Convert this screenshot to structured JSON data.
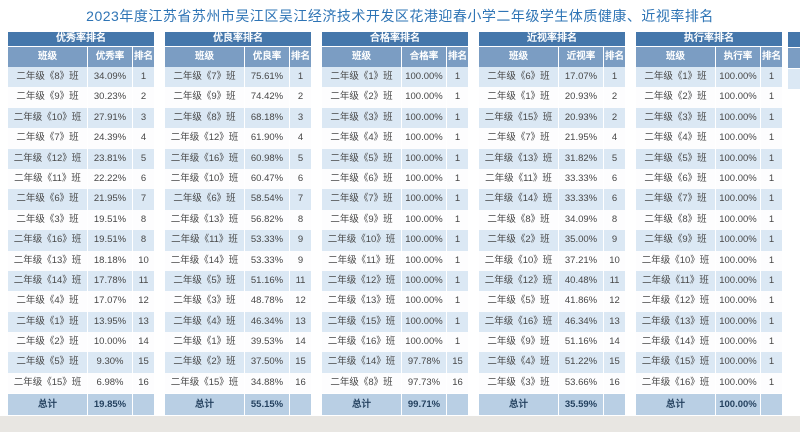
{
  "title": "2023年度江苏省苏州市吴江区吴江经济技术开发区花港迎春小学二年级学生体质健康、近视率排名",
  "column_headers": {
    "class": "班级",
    "rank": "排名"
  },
  "total_label": "总计",
  "colors": {
    "table_header_bg": "#4577ab",
    "table_subheader_bg": "#7b9dc3",
    "row_stripe_bg": "#dbe8f4",
    "total_row_bg": "#b9cfe4",
    "title_text": "#2e74b5",
    "bottom_strip_bg": "#e8e6e2"
  },
  "tables": [
    {
      "title": "优秀率排名",
      "rate_header": "优秀率",
      "total": "19.85%",
      "rows": [
        [
          "二年级《8》班",
          "34.09%",
          "1"
        ],
        [
          "二年级《9》班",
          "30.23%",
          "2"
        ],
        [
          "二年级《10》班",
          "27.91%",
          "3"
        ],
        [
          "二年级《7》班",
          "24.39%",
          "4"
        ],
        [
          "二年级《12》班",
          "23.81%",
          "5"
        ],
        [
          "二年级《11》班",
          "22.22%",
          "6"
        ],
        [
          "二年级《6》班",
          "21.95%",
          "7"
        ],
        [
          "二年级《3》班",
          "19.51%",
          "8"
        ],
        [
          "二年级《16》班",
          "19.51%",
          "8"
        ],
        [
          "二年级《13》班",
          "18.18%",
          "10"
        ],
        [
          "二年级《14》班",
          "17.78%",
          "11"
        ],
        [
          "二年级《4》班",
          "17.07%",
          "12"
        ],
        [
          "二年级《1》班",
          "13.95%",
          "13"
        ],
        [
          "二年级《2》班",
          "10.00%",
          "14"
        ],
        [
          "二年级《5》班",
          "9.30%",
          "15"
        ],
        [
          "二年级《15》班",
          "6.98%",
          "16"
        ]
      ]
    },
    {
      "title": "优良率排名",
      "rate_header": "优良率",
      "total": "55.15%",
      "rows": [
        [
          "二年级《7》班",
          "75.61%",
          "1"
        ],
        [
          "二年级《9》班",
          "74.42%",
          "2"
        ],
        [
          "二年级《8》班",
          "68.18%",
          "3"
        ],
        [
          "二年级《12》班",
          "61.90%",
          "4"
        ],
        [
          "二年级《16》班",
          "60.98%",
          "5"
        ],
        [
          "二年级《10》班",
          "60.47%",
          "6"
        ],
        [
          "二年级《6》班",
          "58.54%",
          "7"
        ],
        [
          "二年级《13》班",
          "56.82%",
          "8"
        ],
        [
          "二年级《11》班",
          "53.33%",
          "9"
        ],
        [
          "二年级《14》班",
          "53.33%",
          "9"
        ],
        [
          "二年级《5》班",
          "51.16%",
          "11"
        ],
        [
          "二年级《3》班",
          "48.78%",
          "12"
        ],
        [
          "二年级《4》班",
          "46.34%",
          "13"
        ],
        [
          "二年级《1》班",
          "39.53%",
          "14"
        ],
        [
          "二年级《2》班",
          "37.50%",
          "15"
        ],
        [
          "二年级《15》班",
          "34.88%",
          "16"
        ]
      ]
    },
    {
      "title": "合格率排名",
      "rate_header": "合格率",
      "total": "99.71%",
      "rows": [
        [
          "二年级《1》班",
          "100.00%",
          "1"
        ],
        [
          "二年级《2》班",
          "100.00%",
          "1"
        ],
        [
          "二年级《3》班",
          "100.00%",
          "1"
        ],
        [
          "二年级《4》班",
          "100.00%",
          "1"
        ],
        [
          "二年级《5》班",
          "100.00%",
          "1"
        ],
        [
          "二年级《6》班",
          "100.00%",
          "1"
        ],
        [
          "二年级《7》班",
          "100.00%",
          "1"
        ],
        [
          "二年级《9》班",
          "100.00%",
          "1"
        ],
        [
          "二年级《10》班",
          "100.00%",
          "1"
        ],
        [
          "二年级《11》班",
          "100.00%",
          "1"
        ],
        [
          "二年级《12》班",
          "100.00%",
          "1"
        ],
        [
          "二年级《13》班",
          "100.00%",
          "1"
        ],
        [
          "二年级《15》班",
          "100.00%",
          "1"
        ],
        [
          "二年级《16》班",
          "100.00%",
          "1"
        ],
        [
          "二年级《14》班",
          "97.78%",
          "15"
        ],
        [
          "二年级《8》班",
          "97.73%",
          "16"
        ]
      ]
    },
    {
      "title": "近视率排名",
      "rate_header": "近视率",
      "total": "35.59%",
      "rows": [
        [
          "二年级《6》班",
          "17.07%",
          "1"
        ],
        [
          "二年级《1》班",
          "20.93%",
          "2"
        ],
        [
          "二年级《15》班",
          "20.93%",
          "2"
        ],
        [
          "二年级《7》班",
          "21.95%",
          "4"
        ],
        [
          "二年级《13》班",
          "31.82%",
          "5"
        ],
        [
          "二年级《11》班",
          "33.33%",
          "6"
        ],
        [
          "二年级《14》班",
          "33.33%",
          "6"
        ],
        [
          "二年级《8》班",
          "34.09%",
          "8"
        ],
        [
          "二年级《2》班",
          "35.00%",
          "9"
        ],
        [
          "二年级《10》班",
          "37.21%",
          "10"
        ],
        [
          "二年级《12》班",
          "40.48%",
          "11"
        ],
        [
          "二年级《5》班",
          "41.86%",
          "12"
        ],
        [
          "二年级《16》班",
          "46.34%",
          "13"
        ],
        [
          "二年级《9》班",
          "51.16%",
          "14"
        ],
        [
          "二年级《4》班",
          "51.22%",
          "15"
        ],
        [
          "二年级《3》班",
          "53.66%",
          "16"
        ]
      ]
    },
    {
      "title": "执行率排名",
      "rate_header": "执行率",
      "total": "100.00%",
      "rows": [
        [
          "二年级《1》班",
          "100.00%",
          "1"
        ],
        [
          "二年级《2》班",
          "100.00%",
          "1"
        ],
        [
          "二年级《3》班",
          "100.00%",
          "1"
        ],
        [
          "二年级《4》班",
          "100.00%",
          "1"
        ],
        [
          "二年级《5》班",
          "100.00%",
          "1"
        ],
        [
          "二年级《6》班",
          "100.00%",
          "1"
        ],
        [
          "二年级《7》班",
          "100.00%",
          "1"
        ],
        [
          "二年级《8》班",
          "100.00%",
          "1"
        ],
        [
          "二年级《9》班",
          "100.00%",
          "1"
        ],
        [
          "二年级《10》班",
          "100.00%",
          "1"
        ],
        [
          "二年级《11》班",
          "100.00%",
          "1"
        ],
        [
          "二年级《12》班",
          "100.00%",
          "1"
        ],
        [
          "二年级《13》班",
          "100.00%",
          "1"
        ],
        [
          "二年级《14》班",
          "100.00%",
          "1"
        ],
        [
          "二年级《15》班",
          "100.00%",
          "1"
        ],
        [
          "二年级《16》班",
          "100.00%",
          "1"
        ]
      ]
    }
  ]
}
